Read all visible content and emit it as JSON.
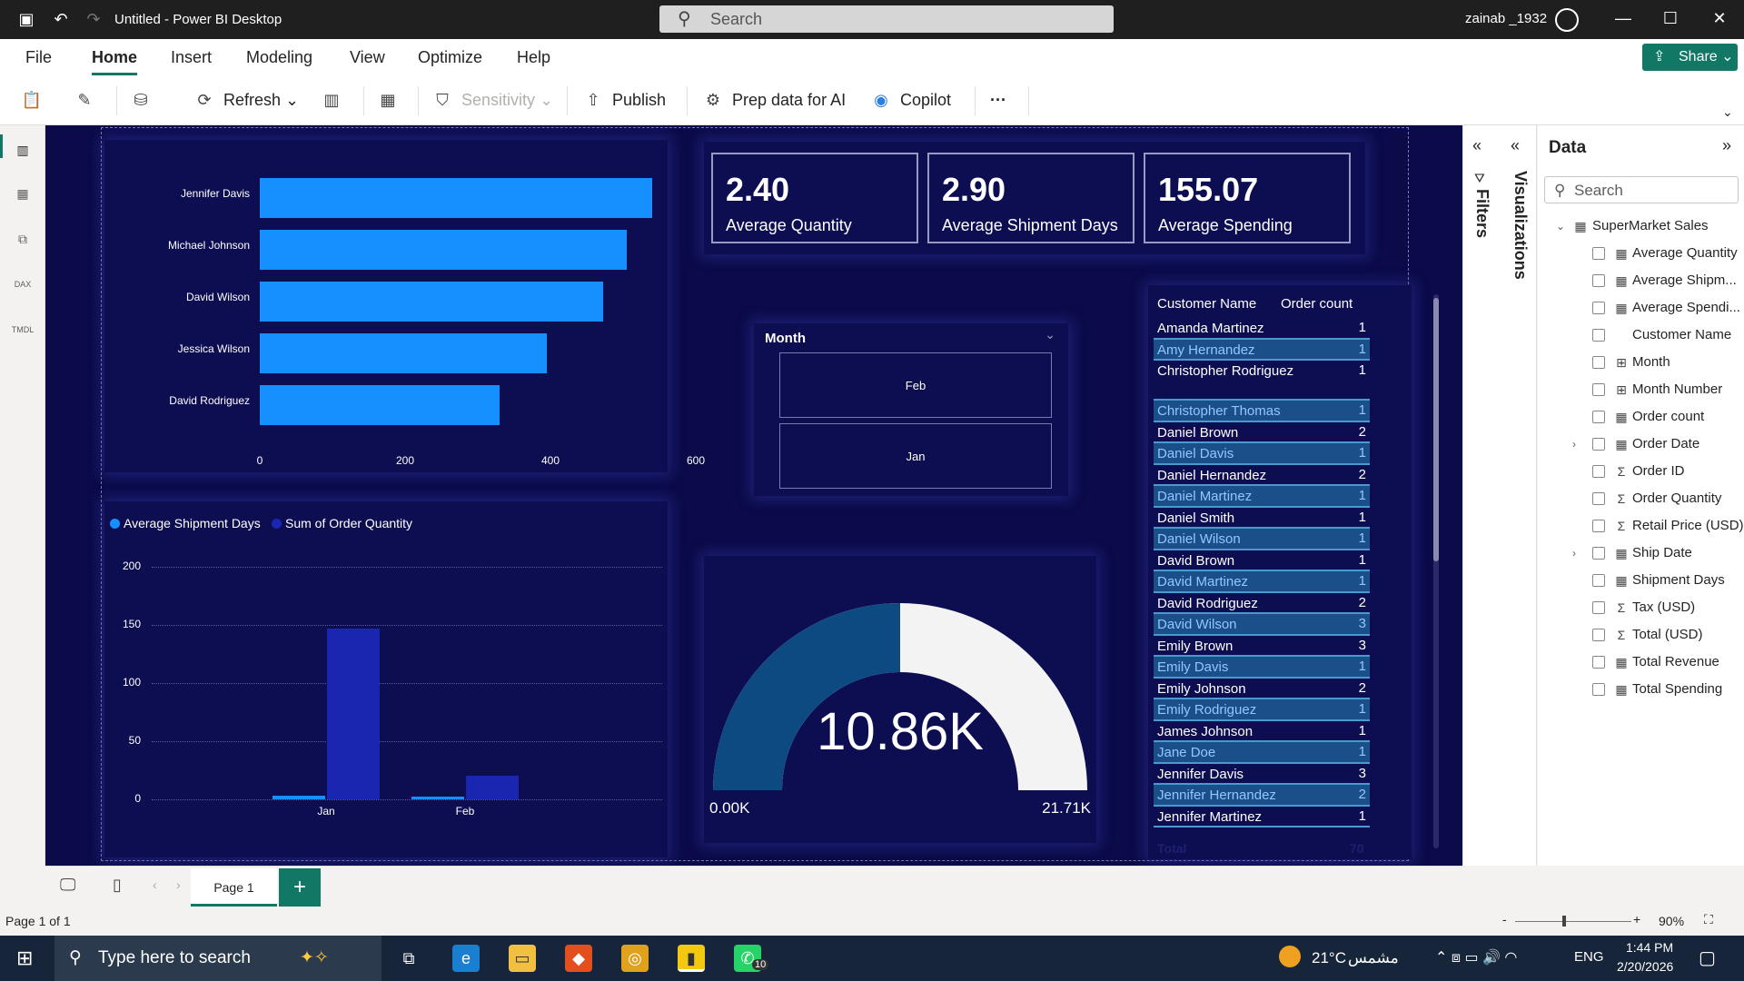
{
  "window": {
    "title": "Untitled - Power BI Desktop",
    "search_placeholder": "Search",
    "user": "zainab _1932"
  },
  "menu": [
    "File",
    "Home",
    "Insert",
    "Modeling",
    "View",
    "Optimize",
    "Help"
  ],
  "share_label": "Share",
  "ribbon": {
    "refresh": "Refresh",
    "sensitivity": "Sensitivity",
    "publish": "Publish",
    "prep": "Prep data for AI",
    "copilot": "Copilot",
    "more": "···"
  },
  "bar_chart": {
    "categories": [
      "Jennifer Davis",
      "Michael Johnson",
      "David Wilson",
      "Jessica Wilson",
      "David Rodriguez"
    ],
    "ticks": [
      "0",
      "200",
      "400",
      "600"
    ]
  },
  "chart_data": [
    {
      "type": "bar",
      "orientation": "horizontal",
      "categories": [
        "Jennifer Davis",
        "Michael Johnson",
        "David Wilson",
        "Jessica Wilson",
        "David Rodriguez"
      ],
      "values": [
        540,
        505,
        472,
        395,
        330
      ],
      "xlim": [
        0,
        600
      ]
    },
    {
      "type": "bar",
      "categories": [
        "Jan",
        "Feb"
      ],
      "series": [
        {
          "name": "Average Shipment Days",
          "values": [
            3,
            2.5
          ]
        },
        {
          "name": "Sum of Order Quantity",
          "values": [
            147,
            20
          ]
        }
      ],
      "ylim": [
        0,
        200
      ],
      "yticks": [
        "200",
        "150",
        "100",
        "50",
        "0"
      ],
      "legend": "top-left"
    }
  ],
  "kpis": [
    {
      "value": "2.40",
      "label": "Average Quantity"
    },
    {
      "value": "2.90",
      "label": "Average Shipment Days"
    },
    {
      "value": "155.07",
      "label": "Average Spending"
    }
  ],
  "slicer": {
    "title": "Month",
    "items": [
      "Feb",
      "Jan"
    ]
  },
  "gauge": {
    "value": "10.86K",
    "min": "0.00K",
    "max": "21.71K",
    "fraction": 0.5
  },
  "table": {
    "headers": [
      "Customer Name",
      "Order count"
    ],
    "rows": [
      [
        "Amanda Martinez",
        "1"
      ],
      [
        "Amy Hernandez",
        "1"
      ],
      [
        "Christopher Rodriguez",
        "1"
      ],
      [
        "Christopher Thomas",
        "1"
      ],
      [
        "Daniel Brown",
        "2"
      ],
      [
        "Daniel Davis",
        "1"
      ],
      [
        "Daniel Hernandez",
        "2"
      ],
      [
        "Daniel Martinez",
        "1"
      ],
      [
        "Daniel Smith",
        "1"
      ],
      [
        "Daniel Wilson",
        "1"
      ],
      [
        "David Brown",
        "1"
      ],
      [
        "David Martinez",
        "1"
      ],
      [
        "David Rodriguez",
        "2"
      ],
      [
        "David Wilson",
        "3"
      ],
      [
        "Emily Brown",
        "3"
      ],
      [
        "Emily Davis",
        "1"
      ],
      [
        "Emily Johnson",
        "2"
      ],
      [
        "Emily Rodriguez",
        "1"
      ],
      [
        "James Johnson",
        "1"
      ],
      [
        "Jane Doe",
        "1"
      ],
      [
        "Jennifer Davis",
        "3"
      ],
      [
        "Jennifer Hernandez",
        "2"
      ],
      [
        "Jennifer Martinez",
        "1"
      ]
    ],
    "total_label": "Total",
    "total_value": "70"
  },
  "panes": {
    "filters": "Filters",
    "visualizations": "Visualizations",
    "data": "Data",
    "data_search": "Search",
    "table_name": "SuperMarket Sales",
    "fields": [
      "Average Quantity",
      "Average Shipm...",
      "Average Spendi...",
      "Customer Name",
      "Month",
      "Month Number",
      "Order count",
      "Order Date",
      "Order ID",
      "Order Quantity",
      "Retail Price (USD)",
      "Ship Date",
      "Shipment Days",
      "Tax (USD)",
      "Total (USD)",
      "Total Revenue",
      "Total Spending"
    ]
  },
  "page_tab": "Page 1",
  "status": {
    "page": "Page 1 of 1",
    "zoom": "90%"
  },
  "taskbar": {
    "search": "Type here to search",
    "temp": "21°C",
    "weather": "مشمس",
    "lang": "ENG",
    "time": "1:44 PM",
    "date": "2/20/2026",
    "badge": "10"
  }
}
